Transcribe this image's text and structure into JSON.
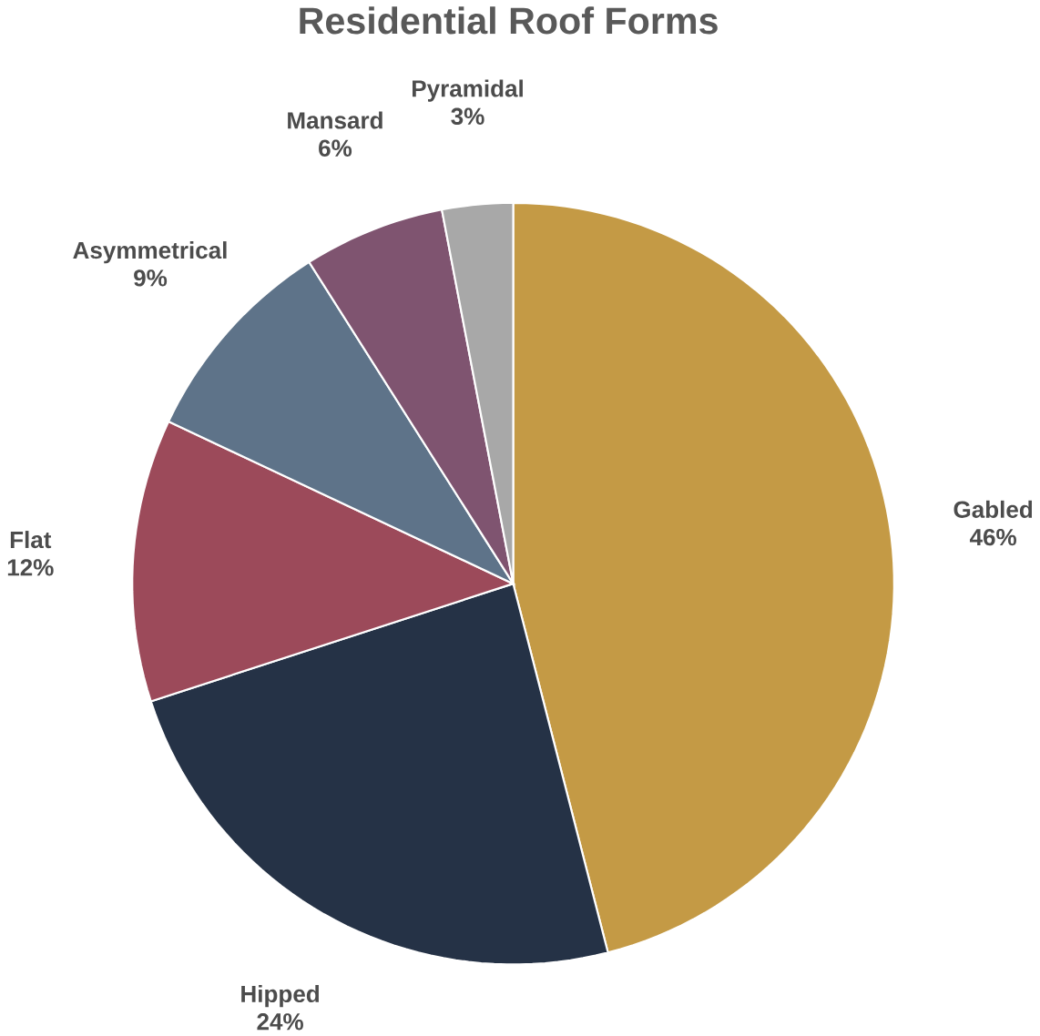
{
  "chart_data": {
    "type": "pie",
    "title": "Residential Roof Forms",
    "categories": [
      "Gabled",
      "Hipped",
      "Flat",
      "Asymmetrical",
      "Mansard",
      "Pyramidal"
    ],
    "values": [
      46,
      24,
      12,
      9,
      6,
      3
    ],
    "value_labels": [
      "46%",
      "24%",
      "12%",
      "9%",
      "6%",
      "3%"
    ],
    "colors": [
      "#c49a45",
      "#253246",
      "#9c4a5a",
      "#5e7389",
      "#7f5470",
      "#a8a8a8"
    ]
  }
}
